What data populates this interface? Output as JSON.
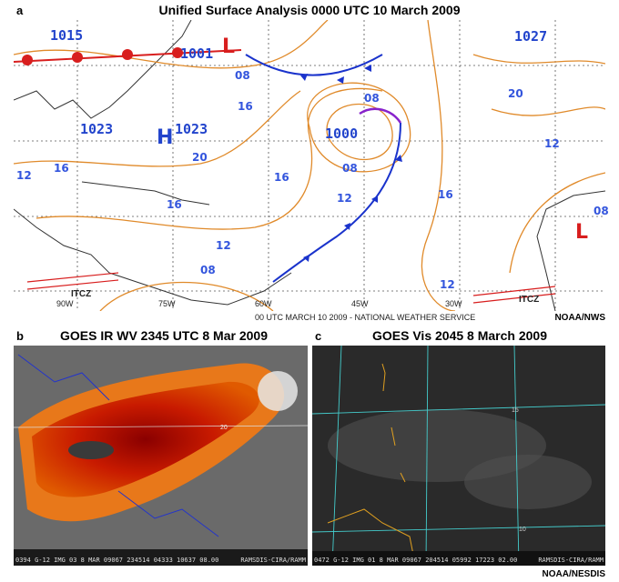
{
  "panels": [
    {
      "label": "a",
      "title": "Unified Surface Analysis 0000 UTC 10 March 2009",
      "footer": "00 UTC MARCH 10 2009 - NATIONAL WEATHER SERVICE",
      "credit": "NOAA/NWS",
      "pressure_centers": [
        "1015",
        "1001",
        "1027",
        "1023",
        "1023",
        "1000"
      ],
      "symbols": [
        "H",
        "L",
        "L"
      ],
      "isobar_labels": [
        "08",
        "08",
        "08",
        "08",
        "08",
        "12",
        "12",
        "12",
        "12",
        "12",
        "16",
        "16",
        "16",
        "16",
        "16",
        "20",
        "20"
      ],
      "longitudes": [
        "90W",
        "75W",
        "60W",
        "45W",
        "30W"
      ],
      "itcz": [
        "ITCZ",
        "ITCZ"
      ]
    },
    {
      "label": "b",
      "title": "GOES IR WV 2345 UTC 8 Mar 2009",
      "grid_labels": [
        "20"
      ],
      "strip": "0394 G-12 IMG 03 8 MAR 09067 234514 04333 10637 08.00",
      "strip_credit": "RAMSDIS-CIRA/RAMM"
    },
    {
      "label": "c",
      "title": "GOES Vis 2045 8 March 2009",
      "grid_labels": [
        "15",
        "10"
      ],
      "strip": "0472 G-12 IMG 01 8 MAR 09067 204514 05992 17223 02.00",
      "strip_credit": "RAMSDIS-CIRA/RAMM",
      "credit": "NOAA/NESDIS"
    }
  ]
}
